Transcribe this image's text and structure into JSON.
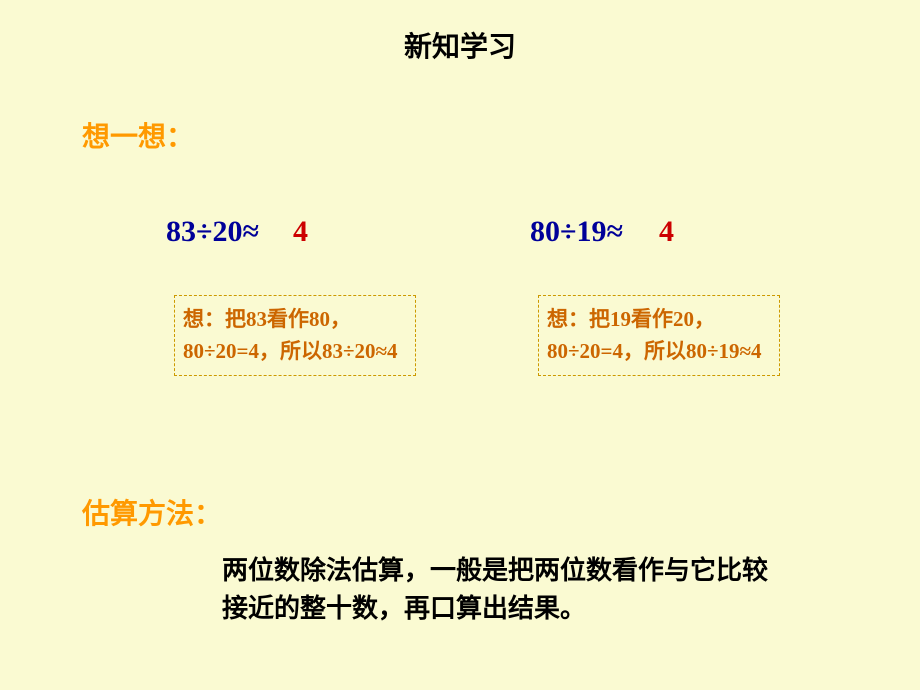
{
  "title": {
    "text": "新知学习",
    "fontsize": 28
  },
  "think": {
    "label": "想一想：",
    "fontsize": 28
  },
  "problems": {
    "left": {
      "expr": "83÷20≈",
      "answer": "4",
      "hint": "想：把83看作80，80÷20=4，所以83÷20≈4"
    },
    "right": {
      "expr": "80÷19≈",
      "answer": "4",
      "hint": "想：把19看作20，80÷20=4，所以80÷19≈4"
    },
    "expr_fontsize": 30,
    "answer_fontsize": 30,
    "hint_fontsize": 21
  },
  "method": {
    "label": "估算方法：",
    "label_fontsize": 28,
    "text": "两位数除法估算，一般是把两位数看作与它比较接近的整十数，再口算出结果。",
    "text_fontsize": 26
  },
  "colors": {
    "background": "#fafad2",
    "title_color": "#000000",
    "accent_orange": "#ff9900",
    "expr_blue": "#000099",
    "answer_red": "#cc0000",
    "hint_text": "#cc6600",
    "hint_border": "#cc9900",
    "body_text": "#000000"
  }
}
